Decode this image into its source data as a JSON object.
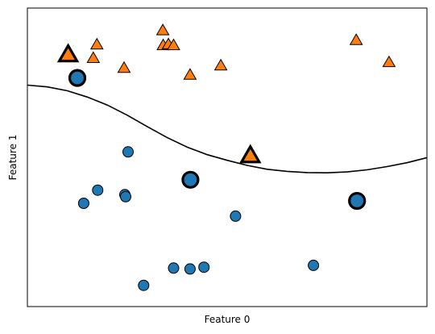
{
  "chart_data": {
    "type": "scatter",
    "title": "",
    "xlabel": "Feature 0",
    "ylabel": "Feature 1",
    "xticks": [],
    "yticks": [],
    "xlim": [
      0,
      100
    ],
    "ylim": [
      0,
      100
    ],
    "grid": false,
    "colors": {
      "class0": "#1f77b4",
      "class1": "#ff7f0e",
      "edge": "#000000",
      "boundary": "#000000"
    },
    "series": [
      {
        "marker": "circle",
        "color": "#1f77b4",
        "x": [
          25.2,
          17.6,
          14.1,
          24.4,
          24.6,
          52.1,
          29.1,
          40.7,
          44.2,
          36.6,
          71.6
        ],
        "y": [
          51.8,
          39.0,
          34.6,
          37.5,
          36.8,
          30.3,
          7.1,
          12.6,
          13.2,
          12.9,
          13.8
        ]
      },
      {
        "marker": "triangle",
        "color": "#ff7f0e",
        "x": [
          17.4,
          16.5,
          33.9,
          34.0,
          35.3,
          36.6,
          24.2,
          40.7,
          48.4,
          82.3,
          90.5
        ],
        "y": [
          87.6,
          83.1,
          92.4,
          87.4,
          87.7,
          87.4,
          79.8,
          77.5,
          80.6,
          89.1,
          81.7
        ]
      }
    ],
    "support_vectors": [
      {
        "x": 12.5,
        "y": 76.6,
        "class": 0
      },
      {
        "x": 40.8,
        "y": 42.5,
        "class": 0
      },
      {
        "x": 82.5,
        "y": 35.4,
        "class": 0
      },
      {
        "x": 10.2,
        "y": 84.2,
        "class": 1
      },
      {
        "x": 55.8,
        "y": 50.4,
        "class": 1
      }
    ],
    "decision_boundary": {
      "x": [
        0,
        5,
        10,
        15,
        20,
        25,
        30,
        35,
        40,
        45,
        50,
        55,
        60,
        65,
        70,
        75,
        80,
        85,
        90,
        95,
        100
      ],
      "y": [
        74.2,
        73.6,
        72.3,
        70.2,
        67.5,
        64.1,
        60.3,
        56.6,
        53.4,
        50.9,
        49.0,
        47.3,
        46.0,
        45.3,
        44.9,
        44.8,
        45.1,
        45.8,
        46.9,
        48.2,
        49.9
      ]
    }
  }
}
